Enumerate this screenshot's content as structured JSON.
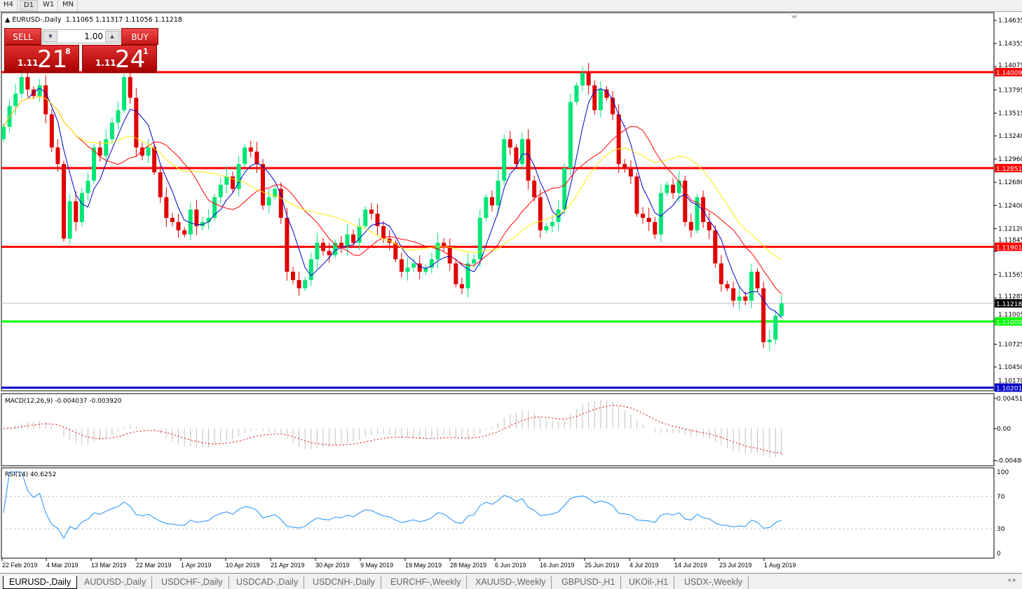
{
  "timeframes": [
    {
      "label": "H4"
    },
    {
      "label": "D1",
      "active": true
    },
    {
      "label": "W1"
    },
    {
      "label": "MN"
    }
  ],
  "chart": {
    "symbol_line": "EURUSD-,Daily",
    "ohlc_text": "1.11065 1.11317 1.11056 1.11218"
  },
  "trade_panel": {
    "sell_label": "SELL",
    "buy_label": "BUY",
    "lot": "1.00",
    "sell_big": "1.11",
    "sell_digits": "21",
    "sell_pip": "8",
    "buy_big": "1.11",
    "buy_digits": "24",
    "buy_pip": "1"
  },
  "price_axis": {
    "ticks": [
      "1.14635",
      "1.14355",
      "1.14075",
      "1.13795",
      "1.13515",
      "1.13240",
      "1.12960",
      "1.12680",
      "1.12400",
      "1.12120",
      "1.11845",
      "1.11565",
      "1.11285",
      "1.11005",
      "1.10725",
      "1.10450",
      "1.10170"
    ]
  },
  "levels": [
    {
      "price": "1.14009",
      "color": "#ff0000"
    },
    {
      "price": "1.12851",
      "color": "#ff0000"
    },
    {
      "price": "1.11901",
      "color": "#ff0000"
    },
    {
      "price": "1.11000",
      "color": "#00ff00"
    },
    {
      "price": "1.10201",
      "color": "#0000cc"
    },
    {
      "price": "1.11218",
      "color": "#000000",
      "current": true
    }
  ],
  "macd": {
    "label": "MACD(12,26,9) -0.004037 -0.003920",
    "ticks": [
      "0.004517",
      "0.00",
      "-0.00480"
    ]
  },
  "rsi": {
    "label": "RSI(14) 40.6252",
    "ticks": [
      "100",
      "70",
      "30",
      "0"
    ]
  },
  "dates": [
    "22 Feb 2019",
    "4 Mar 2019",
    "13 Mar 2019",
    "22 Mar 2019",
    "1 Apr 2019",
    "10 Apr 2019",
    "21 Apr 2019",
    "30 Apr 2019",
    "9 May 2019",
    "19 May 2019",
    "28 May 2019",
    "6 Jun 2019",
    "16 Jun 2019",
    "25 Jun 2019",
    "4 Jul 2019",
    "14 Jul 2019",
    "23 Jul 2019",
    "1 Aug 2019"
  ],
  "tabs": [
    {
      "label": "EURUSD-,Daily",
      "active": true
    },
    {
      "label": "AUDUSD-,Daily"
    },
    {
      "label": "USDCHF-,Daily"
    },
    {
      "label": "USDCAD-,Daily"
    },
    {
      "label": "USDCNH-,Daily"
    },
    {
      "label": "EURCHF-,Weekly"
    },
    {
      "label": "XAUUSD-,Weekly"
    },
    {
      "label": "GBPUSD-,H1"
    },
    {
      "label": "UKOil-,H1"
    },
    {
      "label": "USDX-,Weekly"
    }
  ],
  "colors": {
    "bull": "#00e676",
    "bear": "#e00000",
    "ma_fast": "#0000cc",
    "ma_mid": "#ff0000",
    "ma_slow": "#ffee00"
  },
  "chart_data": {
    "type": "candlestick",
    "last_bar": {
      "open": 1.11065,
      "high": 1.11317,
      "low": 1.11056,
      "close": 1.11218
    },
    "ylim": [
      1.1017,
      1.14635
    ],
    "closes": [
      1.1335,
      1.136,
      1.1375,
      1.1395,
      1.138,
      1.1372,
      1.1385,
      1.135,
      1.131,
      1.129,
      1.12,
      1.1245,
      1.122,
      1.1255,
      1.127,
      1.131,
      1.13,
      1.132,
      1.134,
      1.1355,
      1.1395,
      1.137,
      1.131,
      1.13,
      1.131,
      1.128,
      1.125,
      1.1225,
      1.122,
      1.121,
      1.1205,
      1.1235,
      1.1215,
      1.122,
      1.1225,
      1.125,
      1.1265,
      1.1275,
      1.126,
      1.129,
      1.131,
      1.1305,
      1.129,
      1.124,
      1.125,
      1.126,
      1.1225,
      1.116,
      1.115,
      1.114,
      1.115,
      1.1175,
      1.1195,
      1.1185,
      1.118,
      1.1195,
      1.119,
      1.1205,
      1.1195,
      1.1215,
      1.1235,
      1.123,
      1.1215,
      1.12,
      1.1195,
      1.1175,
      1.116,
      1.1165,
      1.117,
      1.116,
      1.1165,
      1.1175,
      1.1195,
      1.119,
      1.117,
      1.1145,
      1.114,
      1.117,
      1.1175,
      1.1225,
      1.125,
      1.124,
      1.127,
      1.132,
      1.131,
      1.129,
      1.132,
      1.127,
      1.125,
      1.121,
      1.1215,
      1.122,
      1.1235,
      1.1285,
      1.1365,
      1.1385,
      1.14,
      1.1385,
      1.1355,
      1.138,
      1.137,
      1.135,
      1.129,
      1.1285,
      1.1275,
      1.123,
      1.1225,
      1.122,
      1.1205,
      1.1255,
      1.1265,
      1.1255,
      1.127,
      1.122,
      1.121,
      1.125,
      1.122,
      1.121,
      1.117,
      1.1145,
      1.114,
      1.1125,
      1.113,
      1.1125,
      1.116,
      1.114,
      1.1075,
      1.1078,
      1.1107,
      1.11218
    ]
  }
}
